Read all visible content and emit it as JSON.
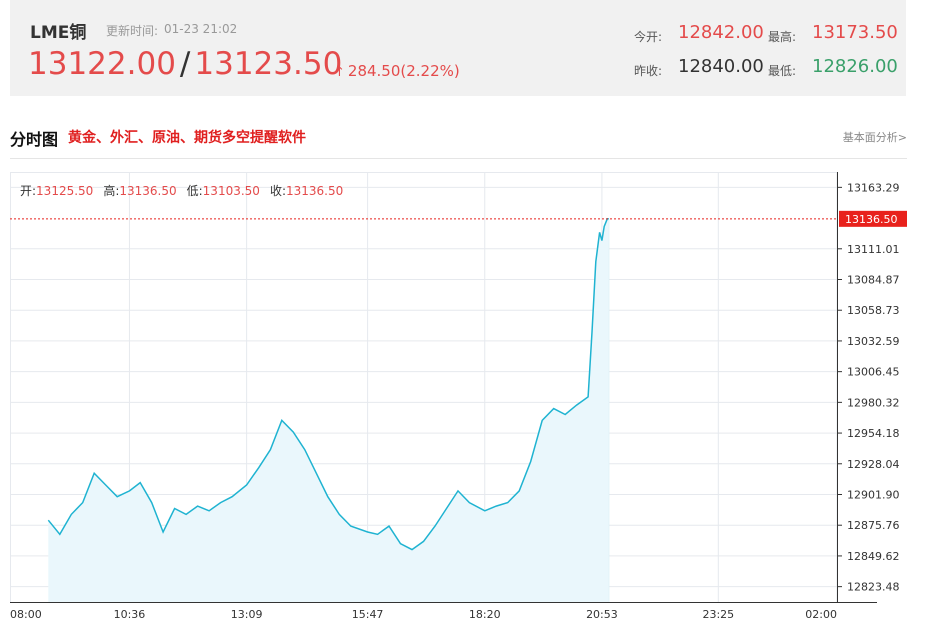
{
  "quote": {
    "name": "LME铜",
    "update_label": "更新时间:",
    "update_time": "01-23 21:02",
    "bid": "13122.00",
    "separator": "/",
    "ask": "13123.50",
    "change_arrow": "↑",
    "change": "284.50(2.22%)",
    "open_label": "今开:",
    "open": "12842.00",
    "high_label": "最高:",
    "high": "13173.50",
    "prev_close_label": "昨收:",
    "prev_close": "12840.00",
    "low_label": "最低:",
    "low": "12826.00"
  },
  "title_bar": {
    "title": "分时图",
    "promo_link": "黄金、外汇、原油、期货多空提醒软件",
    "right_link": "基本面分析>"
  },
  "ohlc": {
    "open_label": "开:",
    "open": "13125.50",
    "high_label": "高:",
    "high": "13136.50",
    "low_label": "低:",
    "low": "13103.50",
    "close_label": "收:",
    "close": "13136.50"
  },
  "colors": {
    "up": "#e44b4b",
    "down": "#3aa06a",
    "line": "#1fb3d1",
    "fill": "#eaf7fc",
    "grid": "#e6e9ee",
    "last_price_bg": "#e8211c"
  },
  "chart_data": {
    "type": "area",
    "x_ticks": [
      "08:00",
      "10:36",
      "13:09",
      "15:47",
      "18:20",
      "20:53",
      "23:25",
      "02:00"
    ],
    "y_ticks": [
      "13163.29",
      "13111.01",
      "13084.87",
      "13058.73",
      "13032.59",
      "13006.45",
      "12980.32",
      "12954.18",
      "12928.04",
      "12901.90",
      "12875.76",
      "12849.62",
      "12823.48"
    ],
    "ylim": [
      12810.41,
      13176.36
    ],
    "last_price_label": "13136.50",
    "last_price": 13136.5,
    "x_start": "08:00",
    "x_end": "02:00",
    "series": [
      {
        "x": [
          "08:50",
          "09:05",
          "09:20",
          "09:35",
          "09:50",
          "10:05",
          "10:20",
          "10:36",
          "10:50",
          "11:05",
          "11:20",
          "11:35",
          "11:50",
          "12:05",
          "12:20",
          "12:35",
          "12:50",
          "13:09",
          "13:25",
          "13:40",
          "13:55",
          "14:10",
          "14:25",
          "14:40",
          "14:55",
          "15:10",
          "15:25",
          "15:47",
          "16:00",
          "16:15",
          "16:30",
          "16:45",
          "17:00",
          "17:15",
          "17:30",
          "17:45",
          "18:00",
          "18:20",
          "18:35",
          "18:50",
          "19:05",
          "19:20",
          "19:35",
          "19:50",
          "20:05",
          "20:20",
          "20:35",
          "20:40",
          "20:45",
          "20:50",
          "20:53",
          "20:56",
          "21:00",
          "21:02"
        ],
        "values": [
          12880,
          12868,
          12885,
          12895,
          12920,
          12910,
          12900,
          12905,
          12912,
          12895,
          12870,
          12890,
          12885,
          12892,
          12888,
          12895,
          12900,
          12910,
          12925,
          12940,
          12965,
          12955,
          12940,
          12920,
          12900,
          12885,
          12875,
          12870,
          12868,
          12875,
          12860,
          12855,
          12862,
          12875,
          12890,
          12905,
          12895,
          12888,
          12892,
          12895,
          12905,
          12930,
          12965,
          12975,
          12970,
          12978,
          12985,
          13040,
          13100,
          13125,
          13118,
          13130,
          13136.5,
          13136.5
        ]
      }
    ]
  }
}
